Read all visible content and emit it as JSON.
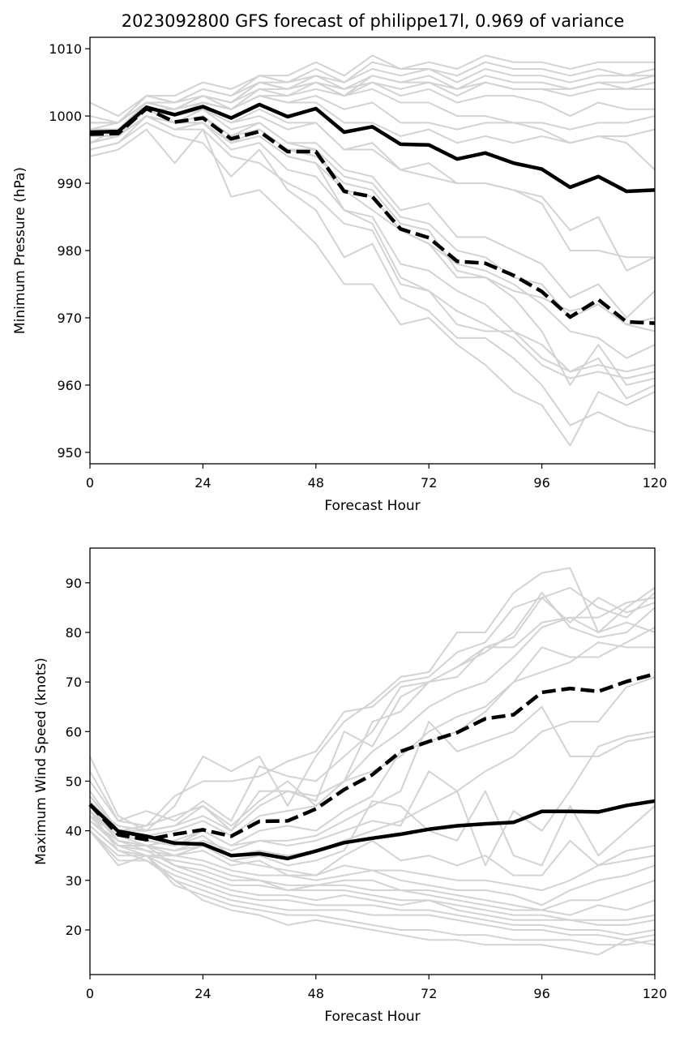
{
  "chart_data": [
    {
      "type": "line",
      "title": "2023092800 GFS forecast of philippe17l, 0.969 of variance",
      "xlabel": "Forecast Hour",
      "ylabel": "Minimum Pressure (hPa)",
      "xlim": [
        0,
        120
      ],
      "ylim": [
        948.3,
        1011.7
      ],
      "xticks": [
        0,
        24,
        48,
        72,
        96,
        120
      ],
      "yticks": [
        950,
        960,
        970,
        980,
        990,
        1000,
        1010
      ],
      "grid": false,
      "x": [
        0,
        6,
        12,
        18,
        24,
        30,
        36,
        42,
        48,
        54,
        60,
        66,
        72,
        78,
        84,
        90,
        96,
        102,
        108,
        114,
        120
      ],
      "highlight_series": [
        {
          "style": "solid",
          "color": "#000000",
          "values": [
            997.6,
            997.7,
            1001.3,
            1000.2,
            1001.4,
            999.7,
            1001.7,
            999.9,
            1001.1,
            997.6,
            998.4,
            995.8,
            995.7,
            993.6,
            994.5,
            993.0,
            992.1,
            989.4,
            991.0,
            988.8,
            989.0
          ]
        },
        {
          "style": "dashed",
          "color": "#000000",
          "values": [
            997.3,
            997.4,
            1001.1,
            999.1,
            999.7,
            996.6,
            997.7,
            994.7,
            994.7,
            988.8,
            988.0,
            983.2,
            981.9,
            978.4,
            978.1,
            976.3,
            973.9,
            970.1,
            972.7,
            969.4,
            969.2
          ]
        }
      ],
      "ensemble_color": "#d3d3d3",
      "ensemble_members": [
        [
          1002,
          1000,
          1003,
          1003,
          1005,
          1004,
          1006,
          1006,
          1008,
          1006,
          1009,
          1007,
          1008,
          1007,
          1009,
          1008,
          1008,
          1007,
          1008,
          1008,
          1008
        ],
        [
          1000,
          999,
          1003,
          1002,
          1004,
          1003,
          1005,
          1005,
          1007,
          1005,
          1008,
          1007,
          1007,
          1006,
          1008,
          1007,
          1007,
          1006,
          1007,
          1006,
          1007
        ],
        [
          999,
          999,
          1002,
          1002,
          1003,
          1002,
          1005,
          1004,
          1006,
          1005,
          1007,
          1006,
          1007,
          1005,
          1007,
          1006,
          1006,
          1005,
          1006,
          1006,
          1006
        ],
        [
          998,
          999,
          1002,
          1001,
          1003,
          1002,
          1004,
          1004,
          1005,
          1004,
          1006,
          1005,
          1006,
          1004,
          1006,
          1005,
          1005,
          1004,
          1005,
          1005,
          1006
        ],
        [
          997,
          998,
          1001,
          1001,
          1002,
          1001,
          1004,
          1003,
          1005,
          1003,
          1006,
          1005,
          1005,
          1004,
          1005,
          1004,
          1004,
          1004,
          1005,
          1004,
          1005
        ],
        [
          996,
          998,
          1001,
          1000,
          1002,
          1001,
          1003,
          1003,
          1004,
          1003,
          1005,
          1004,
          1005,
          1003,
          1005,
          1004,
          1004,
          1003,
          1004,
          1004,
          1004
        ],
        [
          999,
          999,
          1003,
          1002,
          1004,
          1003,
          1006,
          1005,
          1006,
          1004,
          1005,
          1003,
          1004,
          1002,
          1003,
          1003,
          1002,
          1000,
          1002,
          1001,
          1001
        ],
        [
          998,
          998,
          1002,
          1001,
          1003,
          1002,
          1005,
          1004,
          1005,
          1003,
          1004,
          1002,
          1002,
          1000,
          1000,
          999,
          999,
          998,
          999,
          999,
          1000
        ],
        [
          997,
          998,
          1001,
          1000,
          1002,
          1001,
          1003,
          1002,
          1002,
          999,
          999,
          997,
          998,
          996,
          997,
          996,
          997,
          996,
          997,
          997,
          998
        ],
        [
          996,
          997,
          1000,
          999,
          1001,
          999,
          1001,
          999,
          999,
          995,
          995,
          992,
          993,
          990,
          990,
          989,
          988,
          983,
          985,
          977,
          979
        ],
        [
          995,
          996,
          1000,
          998,
          999,
          996,
          997,
          994,
          993,
          989,
          986,
          983,
          981,
          978,
          977,
          975,
          972,
          968,
          967,
          964,
          966
        ],
        [
          994,
          995,
          998,
          993,
          998,
          988,
          989,
          985,
          981,
          975,
          975,
          969,
          970,
          966,
          963,
          959,
          957,
          951,
          959,
          957,
          959
        ],
        [
          996,
          997,
          1001,
          999,
          1000,
          997,
          998,
          995,
          995,
          989,
          988,
          983,
          981,
          976,
          976,
          974,
          973,
          971,
          972,
          969,
          970
        ],
        [
          997,
          997,
          1000,
          998,
          998,
          994,
          993,
          990,
          988,
          984,
          983,
          975,
          974,
          971,
          969,
          967,
          963,
          961,
          962,
          961,
          962
        ],
        [
          995,
          996,
          999,
          997,
          996,
          991,
          995,
          989,
          986,
          979,
          981,
          973,
          971,
          967,
          967,
          964,
          960,
          954,
          956,
          954,
          953
        ],
        [
          998,
          998,
          1001,
          1000,
          1001,
          998,
          999,
          996,
          996,
          992,
          991,
          986,
          987,
          982,
          982,
          980,
          978,
          973,
          975,
          970,
          974
        ],
        [
          997,
          997,
          1001,
          999,
          1000,
          997,
          999,
          996,
          995,
          991,
          990,
          985,
          984,
          980,
          979,
          976,
          975,
          970,
          972,
          969,
          968
        ],
        [
          996,
          997,
          1000,
          999,
          999,
          995,
          996,
          992,
          991,
          986,
          985,
          978,
          977,
          974,
          972,
          968,
          966,
          962,
          963,
          962,
          963
        ],
        [
          998,
          998,
          1001,
          1000,
          1001,
          999,
          1000,
          998,
          999,
          995,
          996,
          992,
          991,
          990,
          990,
          989,
          987,
          980,
          980,
          979,
          979
        ],
        [
          996,
          997,
          1000,
          999,
          1000,
          996,
          998,
          995,
          994,
          990,
          989,
          984,
          983,
          977,
          976,
          973,
          968,
          960,
          966,
          960,
          961
        ],
        [
          999,
          999,
          1002,
          1001,
          1003,
          1001,
          1003,
          1002,
          1003,
          1001,
          1002,
          999,
          999,
          998,
          999,
          999,
          998,
          996,
          997,
          996,
          992
        ],
        [
          997,
          997,
          1000,
          999,
          999,
          996,
          997,
          994,
          993,
          986,
          984,
          976,
          974,
          969,
          968,
          968,
          964,
          962,
          964,
          958,
          960
        ]
      ]
    },
    {
      "type": "line",
      "title": "",
      "xlabel": "Forecast Hour",
      "ylabel": "Maximum Wind Speed (knots)",
      "xlim": [
        0,
        120
      ],
      "ylim": [
        11.0,
        97.0
      ],
      "xticks": [
        0,
        24,
        48,
        72,
        96,
        120
      ],
      "yticks": [
        20,
        30,
        40,
        50,
        60,
        70,
        80,
        90
      ],
      "grid": false,
      "x": [
        0,
        6,
        12,
        18,
        24,
        30,
        36,
        42,
        48,
        54,
        60,
        66,
        72,
        78,
        84,
        90,
        96,
        102,
        108,
        114,
        120
      ],
      "highlight_series": [
        {
          "style": "solid",
          "color": "#000000",
          "values": [
            45.3,
            39.9,
            38.9,
            37.5,
            37.3,
            35.0,
            35.4,
            34.4,
            35.9,
            37.6,
            38.5,
            39.3,
            40.3,
            41.0,
            41.4,
            41.7,
            43.9,
            43.9,
            43.8,
            45.1,
            46.0
          ]
        },
        {
          "style": "dashed",
          "color": "#000000",
          "values": [
            45.3,
            39.2,
            38.2,
            39.3,
            40.2,
            38.9,
            41.9,
            42.0,
            44.4,
            48.3,
            51.3,
            56.0,
            58.0,
            59.8,
            62.6,
            63.4,
            67.9,
            68.7,
            68.1,
            70.1,
            71.6
          ]
        }
      ],
      "ensemble_color": "#d3d3d3",
      "ensemble_members": [
        [
          55,
          43,
          40,
          45,
          55,
          52,
          55,
          45,
          55,
          62,
          66,
          71,
          72,
          80,
          80,
          88,
          92,
          93,
          80,
          85,
          89
        ],
        [
          52,
          42,
          41,
          47,
          50,
          50,
          51,
          54,
          56,
          64,
          65,
          70,
          71,
          76,
          78,
          85,
          87,
          89,
          85,
          83,
          88
        ],
        [
          50,
          42,
          44,
          42,
          46,
          42,
          53,
          51,
          50,
          55,
          60,
          69,
          70,
          73,
          77,
          79,
          87,
          82,
          87,
          84,
          86
        ],
        [
          48,
          40,
          40,
          41,
          45,
          40,
          48,
          48,
          46,
          60,
          57,
          67,
          70,
          71,
          77,
          77,
          82,
          83,
          83,
          86,
          87
        ],
        [
          46,
          40,
          41,
          43,
          45,
          41,
          46,
          50,
          45,
          50,
          62,
          64,
          70,
          73,
          76,
          80,
          88,
          81,
          79,
          80,
          85
        ],
        [
          45,
          41,
          40,
          41,
          43,
          40,
          45,
          48,
          47,
          50,
          56,
          60,
          65,
          68,
          70,
          75,
          81,
          83,
          80,
          82,
          80
        ],
        [
          44,
          39,
          39,
          40,
          42,
          39,
          43,
          44,
          45,
          50,
          52,
          55,
          60,
          63,
          65,
          70,
          77,
          75,
          75,
          78,
          81
        ],
        [
          43,
          39,
          38,
          37,
          40,
          37,
          40,
          41,
          40,
          44,
          47,
          56,
          58,
          60,
          64,
          70,
          72,
          74,
          78,
          77,
          77
        ],
        [
          42,
          38,
          37,
          36,
          38,
          36,
          38,
          38,
          39,
          42,
          45,
          48,
          62,
          56,
          58,
          60,
          65,
          55,
          55,
          58,
          59
        ],
        [
          44,
          39,
          37,
          38,
          40,
          37,
          38,
          37,
          38,
          40,
          42,
          41,
          52,
          48,
          52,
          55,
          60,
          62,
          62,
          69,
          71
        ],
        [
          47,
          40,
          38,
          37,
          39,
          35,
          36,
          35,
          36,
          38,
          40,
          42,
          45,
          48,
          33,
          44,
          40,
          48,
          57,
          59,
          60
        ],
        [
          42,
          38,
          37,
          35,
          37,
          34,
          35,
          33,
          34,
          36,
          46,
          45,
          40,
          38,
          48,
          35,
          33,
          45,
          35,
          40,
          45
        ],
        [
          41,
          36,
          35,
          35,
          36,
          33,
          34,
          31,
          31,
          35,
          38,
          34,
          35,
          33,
          35,
          31,
          31,
          38,
          33,
          36,
          37
        ],
        [
          45,
          38,
          37,
          36,
          37,
          34,
          33,
          32,
          31,
          33,
          32,
          32,
          31,
          30,
          30,
          29,
          28,
          30,
          33,
          34,
          35
        ],
        [
          43,
          37,
          36,
          35,
          34,
          32,
          31,
          31,
          30,
          31,
          32,
          30,
          29,
          28,
          28,
          27,
          25,
          28,
          30,
          31,
          33
        ],
        [
          44,
          36,
          35,
          34,
          33,
          31,
          30,
          29,
          29,
          30,
          30,
          28,
          28,
          27,
          26,
          25,
          24,
          26,
          26,
          28,
          30
        ],
        [
          42,
          37,
          37,
          33,
          32,
          30,
          30,
          28,
          29,
          29,
          28,
          28,
          27,
          26,
          25,
          24,
          24,
          23,
          25,
          24,
          26
        ],
        [
          44,
          38,
          36,
          33,
          31,
          29,
          29,
          28,
          28,
          28,
          27,
          26,
          26,
          25,
          24,
          23,
          23,
          22,
          22,
          22,
          23
        ],
        [
          40,
          35,
          35,
          32,
          30,
          28,
          27,
          27,
          26,
          27,
          26,
          25,
          26,
          24,
          23,
          22,
          22,
          22,
          21,
          21,
          22
        ],
        [
          41,
          36,
          34,
          31,
          29,
          27,
          26,
          26,
          25,
          25,
          25,
          24,
          24,
          23,
          22,
          21,
          21,
          20,
          20,
          19,
          20
        ],
        [
          40,
          34,
          34,
          30,
          28,
          26,
          25,
          24,
          24,
          24,
          23,
          23,
          23,
          22,
          21,
          20,
          20,
          19,
          19,
          18,
          19
        ],
        [
          43,
          37,
          35,
          29,
          27,
          25,
          24,
          23,
          23,
          22,
          21,
          20,
          20,
          19,
          19,
          18,
          18,
          18,
          17,
          17,
          18
        ],
        [
          40,
          33,
          35,
          30,
          26,
          24,
          23,
          21,
          22,
          21,
          20,
          19,
          18,
          18,
          17,
          17,
          17,
          16,
          15,
          18,
          17
        ]
      ]
    }
  ]
}
